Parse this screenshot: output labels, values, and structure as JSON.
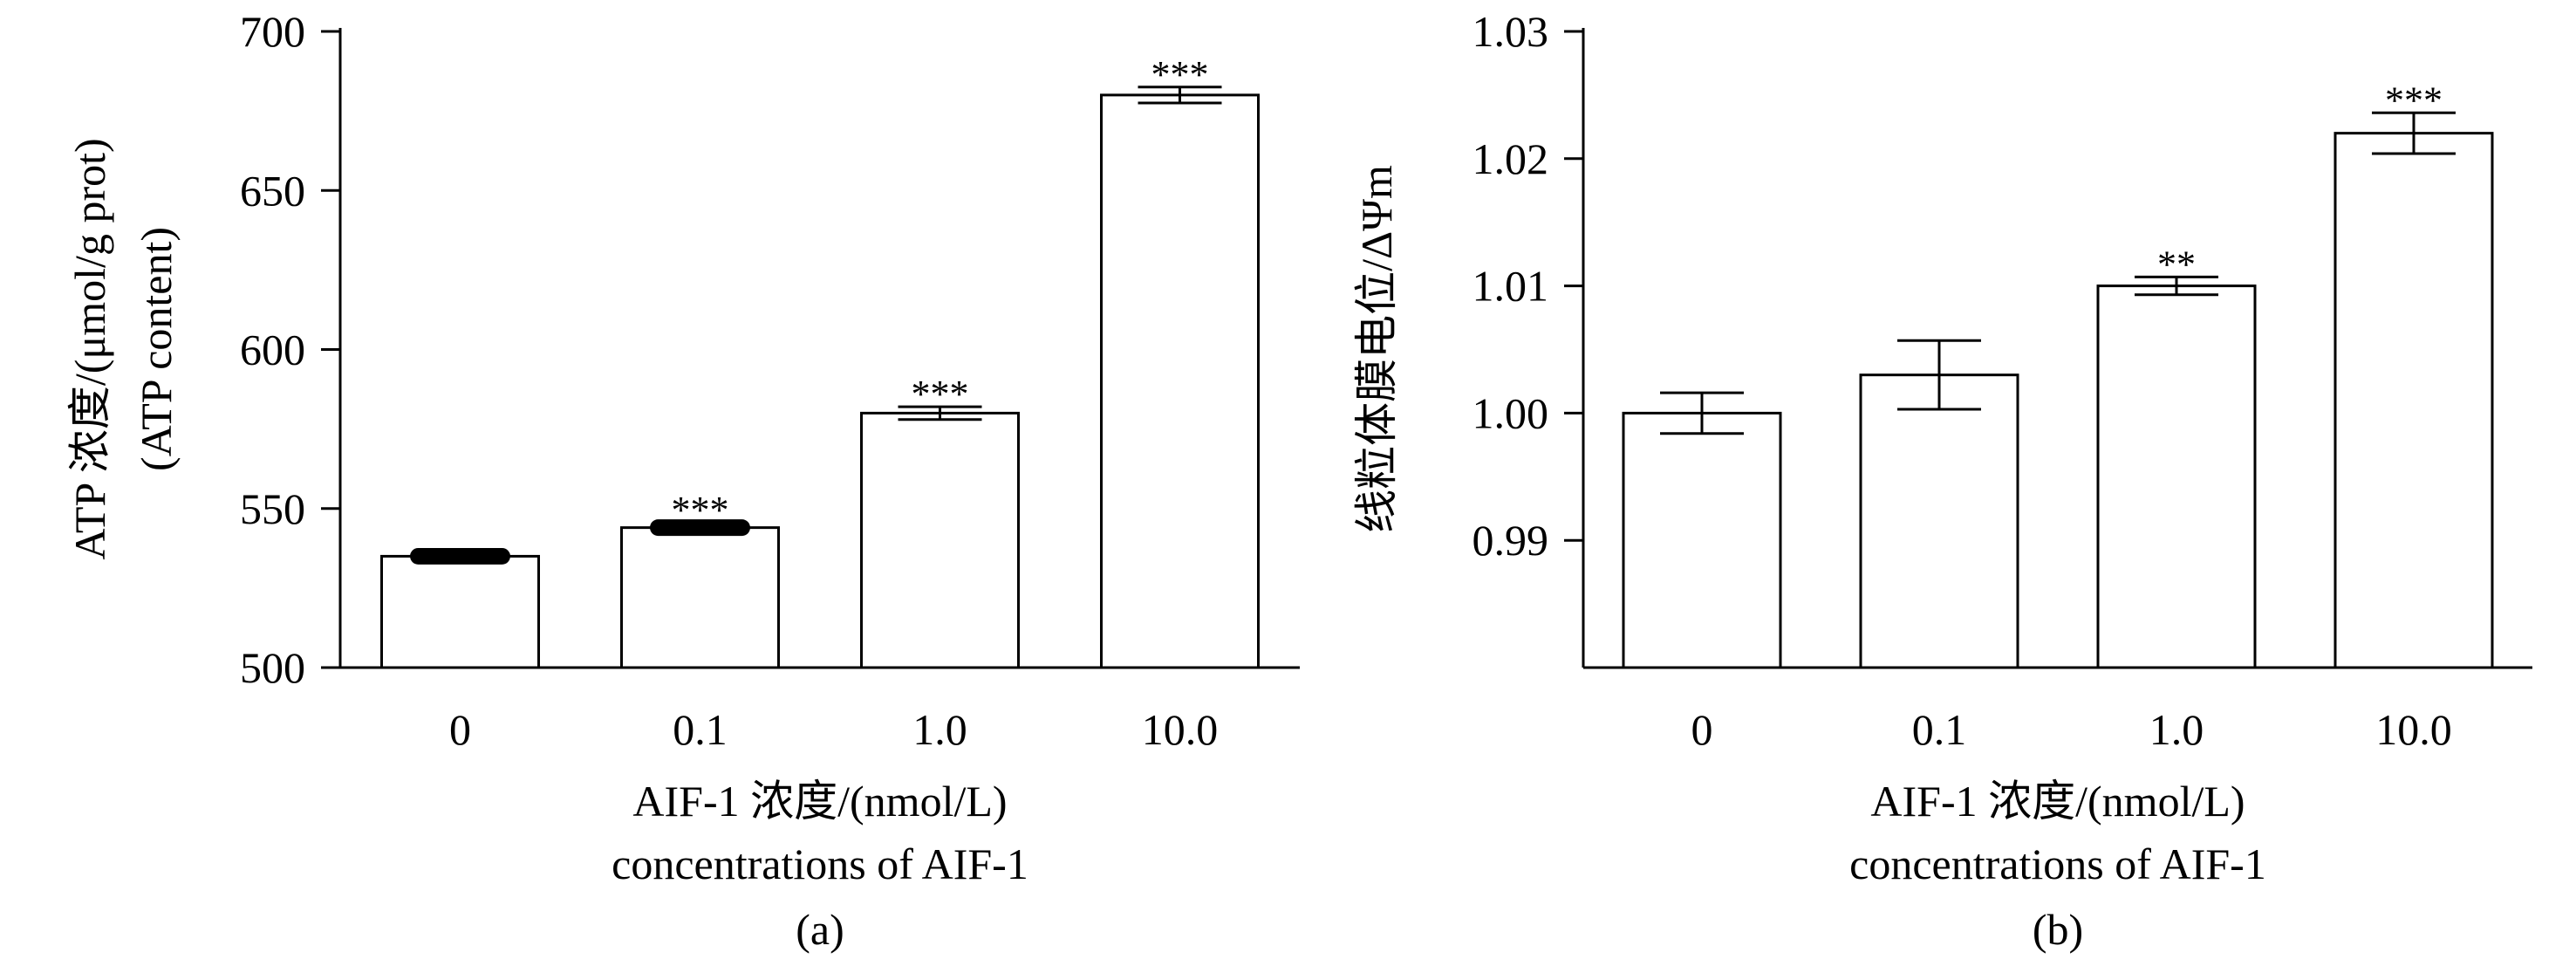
{
  "chart_data": [
    {
      "panel": "(a)",
      "type": "bar",
      "categories": [
        "0",
        "0.1",
        "1.0",
        "10.0"
      ],
      "values": [
        535,
        544,
        580,
        680
      ],
      "errors": [
        1.5,
        1.5,
        2.0,
        2.5
      ],
      "significance": [
        "",
        "***",
        "***",
        "***"
      ],
      "ylim": [
        500,
        700
      ],
      "yticks": [
        "500",
        "550",
        "600",
        "650",
        "700"
      ],
      "ytick_values": [
        500,
        550,
        600,
        650,
        700
      ],
      "ylabel": [
        "ATP 浓度/(μmol/g prot)",
        "(ATP content)"
      ],
      "xlabel": [
        "AIF-1 浓度/(nmol/L)",
        "concentrations of AIF-1"
      ],
      "grid": false,
      "bar_fill": "#ffffff",
      "bar_stroke": "#000000"
    },
    {
      "panel": "(b)",
      "type": "bar",
      "categories": [
        "0",
        "0.1",
        "1.0",
        "10.0"
      ],
      "values": [
        1.0,
        1.003,
        1.01,
        1.022
      ],
      "errors": [
        0.0016,
        0.0027,
        0.0007,
        0.0016
      ],
      "significance": [
        "",
        "",
        "**",
        "***"
      ],
      "ylim": [
        0.98,
        1.03
      ],
      "yticks": [
        "0.99",
        "1.00",
        "1.01",
        "1.02",
        "1.03"
      ],
      "ytick_values": [
        0.99,
        1.0,
        1.01,
        1.02,
        1.03
      ],
      "ylabel": [
        "线粒体膜电位/ΔΨm"
      ],
      "xlabel": [
        "AIF-1 浓度/(nmol/L)",
        "concentrations of AIF-1"
      ],
      "grid": false,
      "bar_fill": "#ffffff",
      "bar_stroke": "#000000"
    }
  ]
}
